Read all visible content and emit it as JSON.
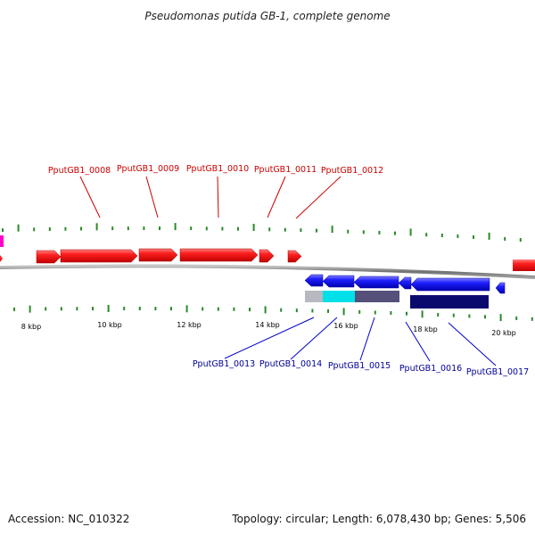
{
  "title": "Pseudomonas putida GB-1, complete genome",
  "footer": {
    "accession": "Accession: NC_010322",
    "summary": "Topology: circular; Length: 6,078,430 bp; Genes: 5,506"
  },
  "colors": {
    "forward_strand": "#ff1a1a",
    "reverse_strand": "#1a1aff",
    "forward_label": "#cc0000",
    "reverse_label": "#000099",
    "tick": "#2a8a2a",
    "backbone": "#888888",
    "magenta_marker": "#ff00cc",
    "track_gray": "#b8b8c0",
    "track_cyan": "#00e0e8",
    "track_slate": "#54507a",
    "track_navy": "#0a0a6e"
  },
  "kbp_labels": [
    "8 kbp",
    "10 kbp",
    "12 kbp",
    "14 kbp",
    "16 kbp",
    "18 kbp",
    "20 kbp"
  ],
  "forward_genes": [
    "PputGB1_0008",
    "PputGB1_0009",
    "PputGB1_0010",
    "PputGB1_0011",
    "PputGB1_0012"
  ],
  "reverse_genes": [
    "PputGB1_0013",
    "PputGB1_0014",
    "PputGB1_0015",
    "PputGB1_0016",
    "PputGB1_0017"
  ]
}
